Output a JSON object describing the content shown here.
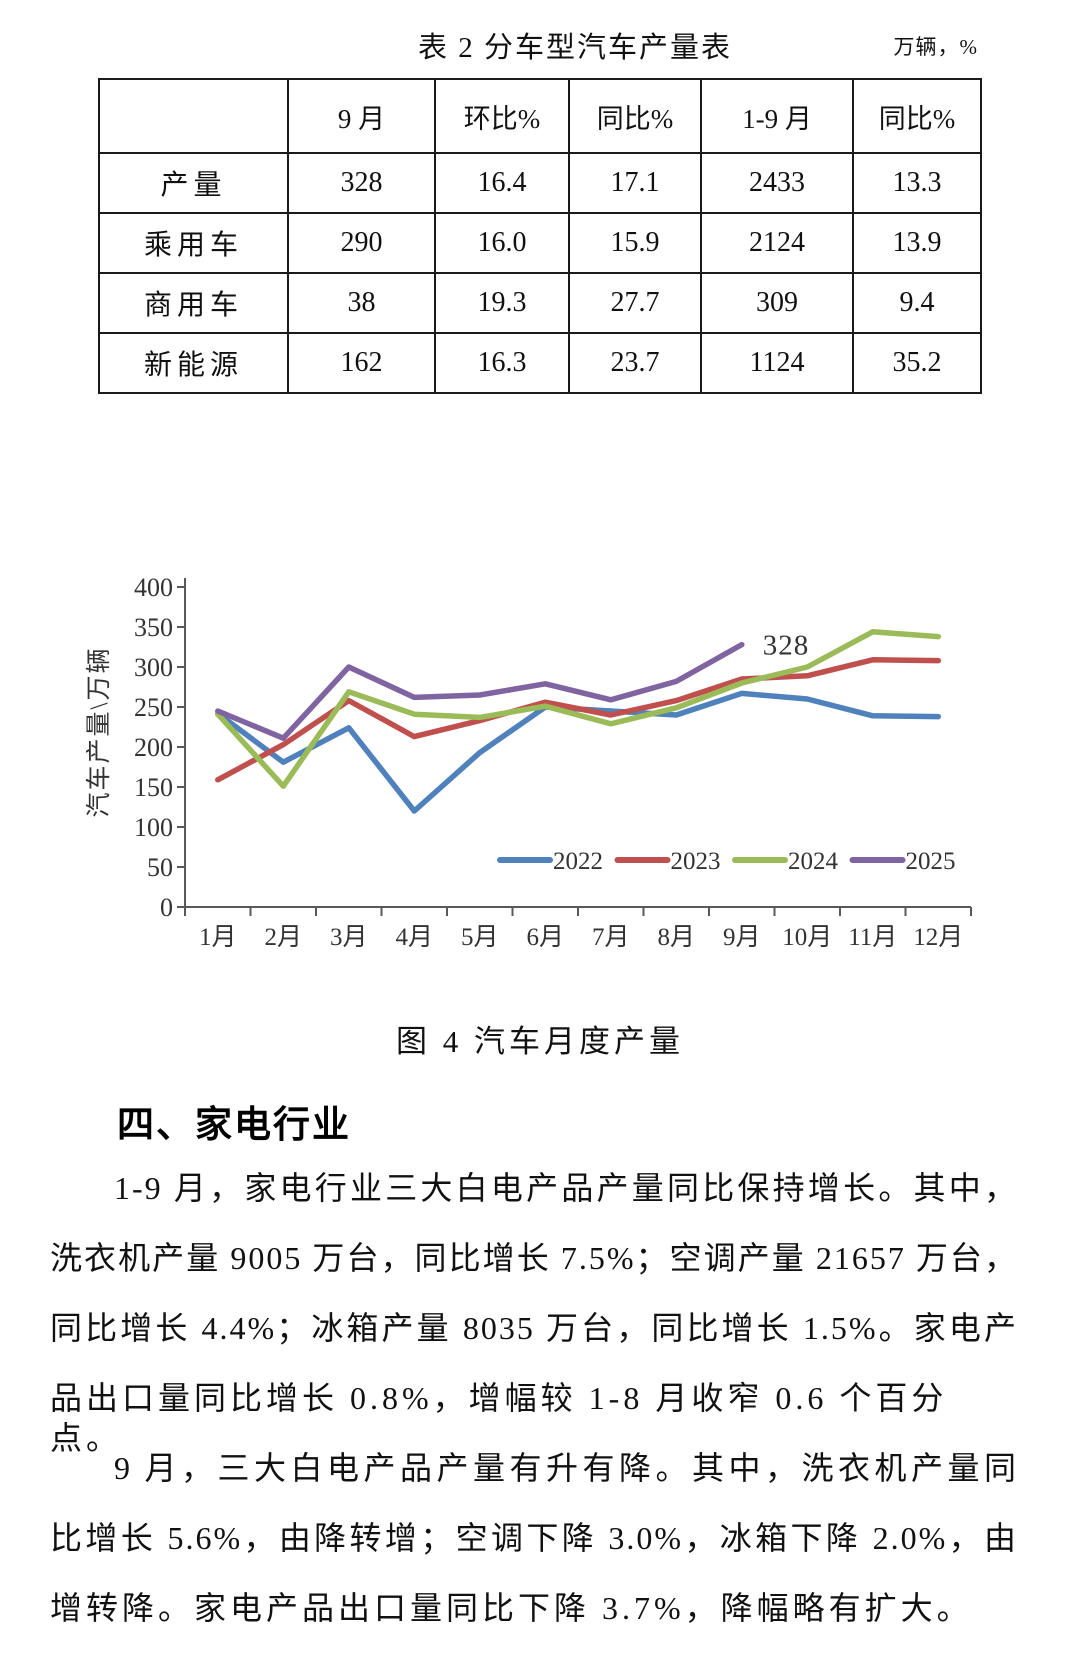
{
  "table": {
    "title": "表 2  分车型汽车产量表",
    "unit": "万辆，%",
    "columns": [
      "",
      "9 月",
      "环比%",
      "同比%",
      "1-9 月",
      "同比%"
    ],
    "rows": [
      {
        "label": "产量",
        "values": [
          "328",
          "16.4",
          "17.1",
          "2433",
          "13.3"
        ]
      },
      {
        "label": "乘用车",
        "values": [
          "290",
          "16.0",
          "15.9",
          "2124",
          "13.9"
        ]
      },
      {
        "label": "商用车",
        "values": [
          "38",
          "19.3",
          "27.7",
          "309",
          "9.4"
        ]
      },
      {
        "label": "新能源",
        "values": [
          "162",
          "16.3",
          "23.7",
          "1124",
          "35.2"
        ]
      }
    ]
  },
  "chart_data": {
    "type": "line",
    "title": "图 4 汽车月度产量",
    "ylabel": "汽车产量\\万辆",
    "xlabel": "",
    "categories": [
      "1月",
      "2月",
      "3月",
      "4月",
      "5月",
      "6月",
      "7月",
      "8月",
      "9月",
      "10月",
      "11月",
      "12月"
    ],
    "ylim": [
      0,
      400
    ],
    "ytick_step": 50,
    "grid": false,
    "legend_position": "bottom-inside",
    "series": [
      {
        "name": "2022",
        "color": "#4F81BD",
        "values": [
          242,
          181,
          224,
          120,
          193,
          250,
          245,
          240,
          267,
          260,
          239,
          238
        ]
      },
      {
        "name": "2023",
        "color": "#C0504D",
        "values": [
          159,
          203,
          258,
          213,
          233,
          256,
          240,
          258,
          285,
          289,
          309,
          308
        ]
      },
      {
        "name": "2024",
        "color": "#9BBB59",
        "values": [
          241,
          151,
          269,
          241,
          237,
          251,
          229,
          249,
          280,
          300,
          344,
          338
        ]
      },
      {
        "name": "2025",
        "color": "#8064A2",
        "values": [
          245,
          211,
          300,
          262,
          265,
          279,
          259,
          282,
          328
        ]
      }
    ],
    "annotation": {
      "text": "328",
      "color": "#7030A0"
    }
  },
  "figure_caption": "图 4 汽车月度产量",
  "section": {
    "heading": "四、家电行业",
    "paragraphs": [
      {
        "lines": [
          {
            "text": "1-9 月，家电行业三大白电产品产量同比保持增长。其中，",
            "indent": true,
            "last": false
          },
          {
            "text": "洗衣机产量 9005 万台，同比增长 7.5%；空调产量 21657 万台，",
            "indent": false,
            "last": false
          },
          {
            "text": "同比增长 4.4%；冰箱产量 8035 万台，同比增长 1.5%。家电产",
            "indent": false,
            "last": false
          },
          {
            "text": "品出口量同比增长 0.8%，增幅较 1-8 月收窄 0.6 个百分点。",
            "indent": false,
            "last": true
          }
        ]
      },
      {
        "lines": [
          {
            "text": "9 月，三大白电产品产量有升有降。其中，洗衣机产量同",
            "indent": true,
            "last": false
          },
          {
            "text": "比增长 5.6%，由降转增；空调下降 3.0%，冰箱下降 2.0%，由",
            "indent": false,
            "last": false
          },
          {
            "text": "增转降。家电产品出口量同比下降 3.7%，降幅略有扩大。",
            "indent": false,
            "last": true
          }
        ]
      }
    ]
  }
}
